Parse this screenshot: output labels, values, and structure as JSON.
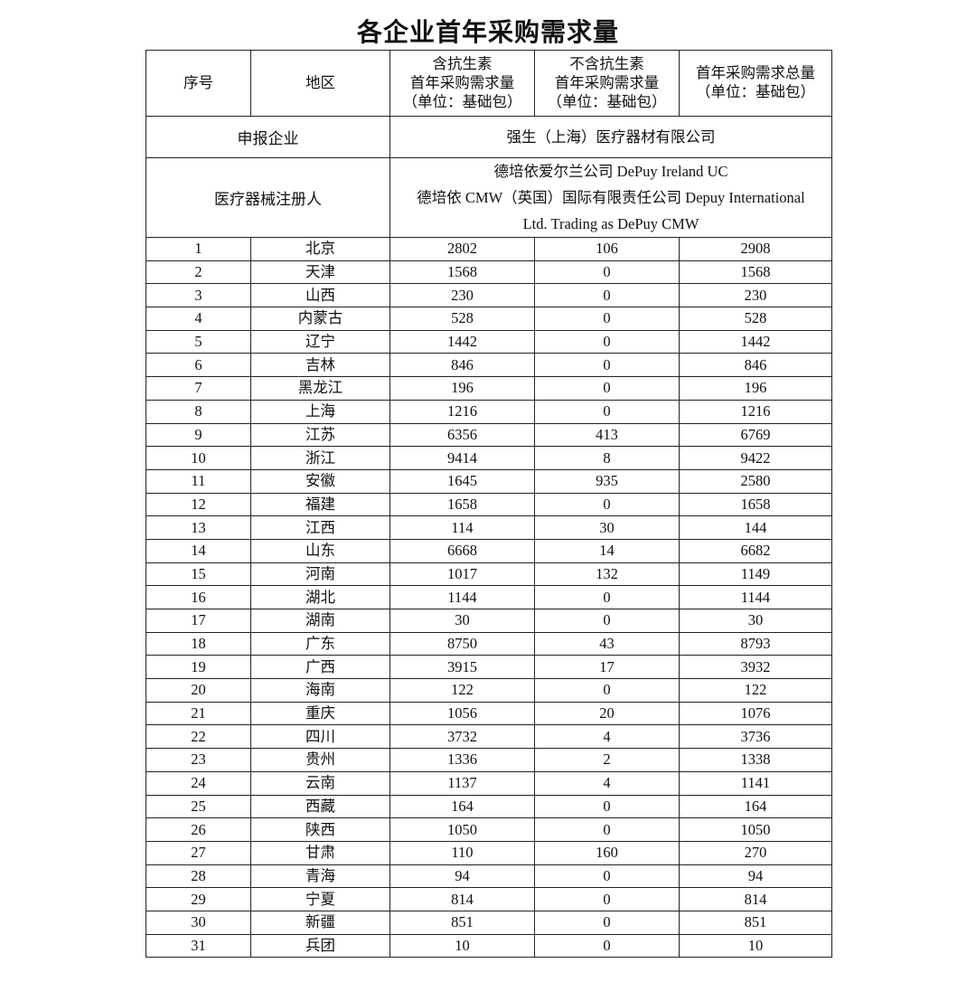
{
  "title": "各企业首年采购需求量",
  "headers": {
    "index": "序号",
    "region": "地区",
    "with_antibiotic": [
      "含抗生素",
      "首年采购需求量",
      "（单位：基础包）"
    ],
    "without_antibiotic": [
      "不含抗生素",
      "首年采购需求量",
      "（单位：基础包）"
    ],
    "total": [
      "首年采购需求总量",
      "（单位：基础包）"
    ]
  },
  "enterprise": {
    "label": "申报企业",
    "value": "强生（上海）医疗器材有限公司"
  },
  "registrant": {
    "label": "医疗器械注册人",
    "lines": [
      "德培依爱尔兰公司 DePuy Ireland UC",
      "德培依 CMW（英国）国际有限责任公司 Depuy International",
      "Ltd. Trading as DePuy CMW"
    ]
  },
  "rows": [
    [
      "1",
      "北京",
      "2802",
      "106",
      "2908"
    ],
    [
      "2",
      "天津",
      "1568",
      "0",
      "1568"
    ],
    [
      "3",
      "山西",
      "230",
      "0",
      "230"
    ],
    [
      "4",
      "内蒙古",
      "528",
      "0",
      "528"
    ],
    [
      "5",
      "辽宁",
      "1442",
      "0",
      "1442"
    ],
    [
      "6",
      "吉林",
      "846",
      "0",
      "846"
    ],
    [
      "7",
      "黑龙江",
      "196",
      "0",
      "196"
    ],
    [
      "8",
      "上海",
      "1216",
      "0",
      "1216"
    ],
    [
      "9",
      "江苏",
      "6356",
      "413",
      "6769"
    ],
    [
      "10",
      "浙江",
      "9414",
      "8",
      "9422"
    ],
    [
      "11",
      "安徽",
      "1645",
      "935",
      "2580"
    ],
    [
      "12",
      "福建",
      "1658",
      "0",
      "1658"
    ],
    [
      "13",
      "江西",
      "114",
      "30",
      "144"
    ],
    [
      "14",
      "山东",
      "6668",
      "14",
      "6682"
    ],
    [
      "15",
      "河南",
      "1017",
      "132",
      "1149"
    ],
    [
      "16",
      "湖北",
      "1144",
      "0",
      "1144"
    ],
    [
      "17",
      "湖南",
      "30",
      "0",
      "30"
    ],
    [
      "18",
      "广东",
      "8750",
      "43",
      "8793"
    ],
    [
      "19",
      "广西",
      "3915",
      "17",
      "3932"
    ],
    [
      "20",
      "海南",
      "122",
      "0",
      "122"
    ],
    [
      "21",
      "重庆",
      "1056",
      "20",
      "1076"
    ],
    [
      "22",
      "四川",
      "3732",
      "4",
      "3736"
    ],
    [
      "23",
      "贵州",
      "1336",
      "2",
      "1338"
    ],
    [
      "24",
      "云南",
      "1137",
      "4",
      "1141"
    ],
    [
      "25",
      "西藏",
      "164",
      "0",
      "164"
    ],
    [
      "26",
      "陕西",
      "1050",
      "0",
      "1050"
    ],
    [
      "27",
      "甘肃",
      "110",
      "160",
      "270"
    ],
    [
      "28",
      "青海",
      "94",
      "0",
      "94"
    ],
    [
      "29",
      "宁夏",
      "814",
      "0",
      "814"
    ],
    [
      "30",
      "新疆",
      "851",
      "0",
      "851"
    ],
    [
      "31",
      "兵团",
      "10",
      "0",
      "10"
    ]
  ]
}
